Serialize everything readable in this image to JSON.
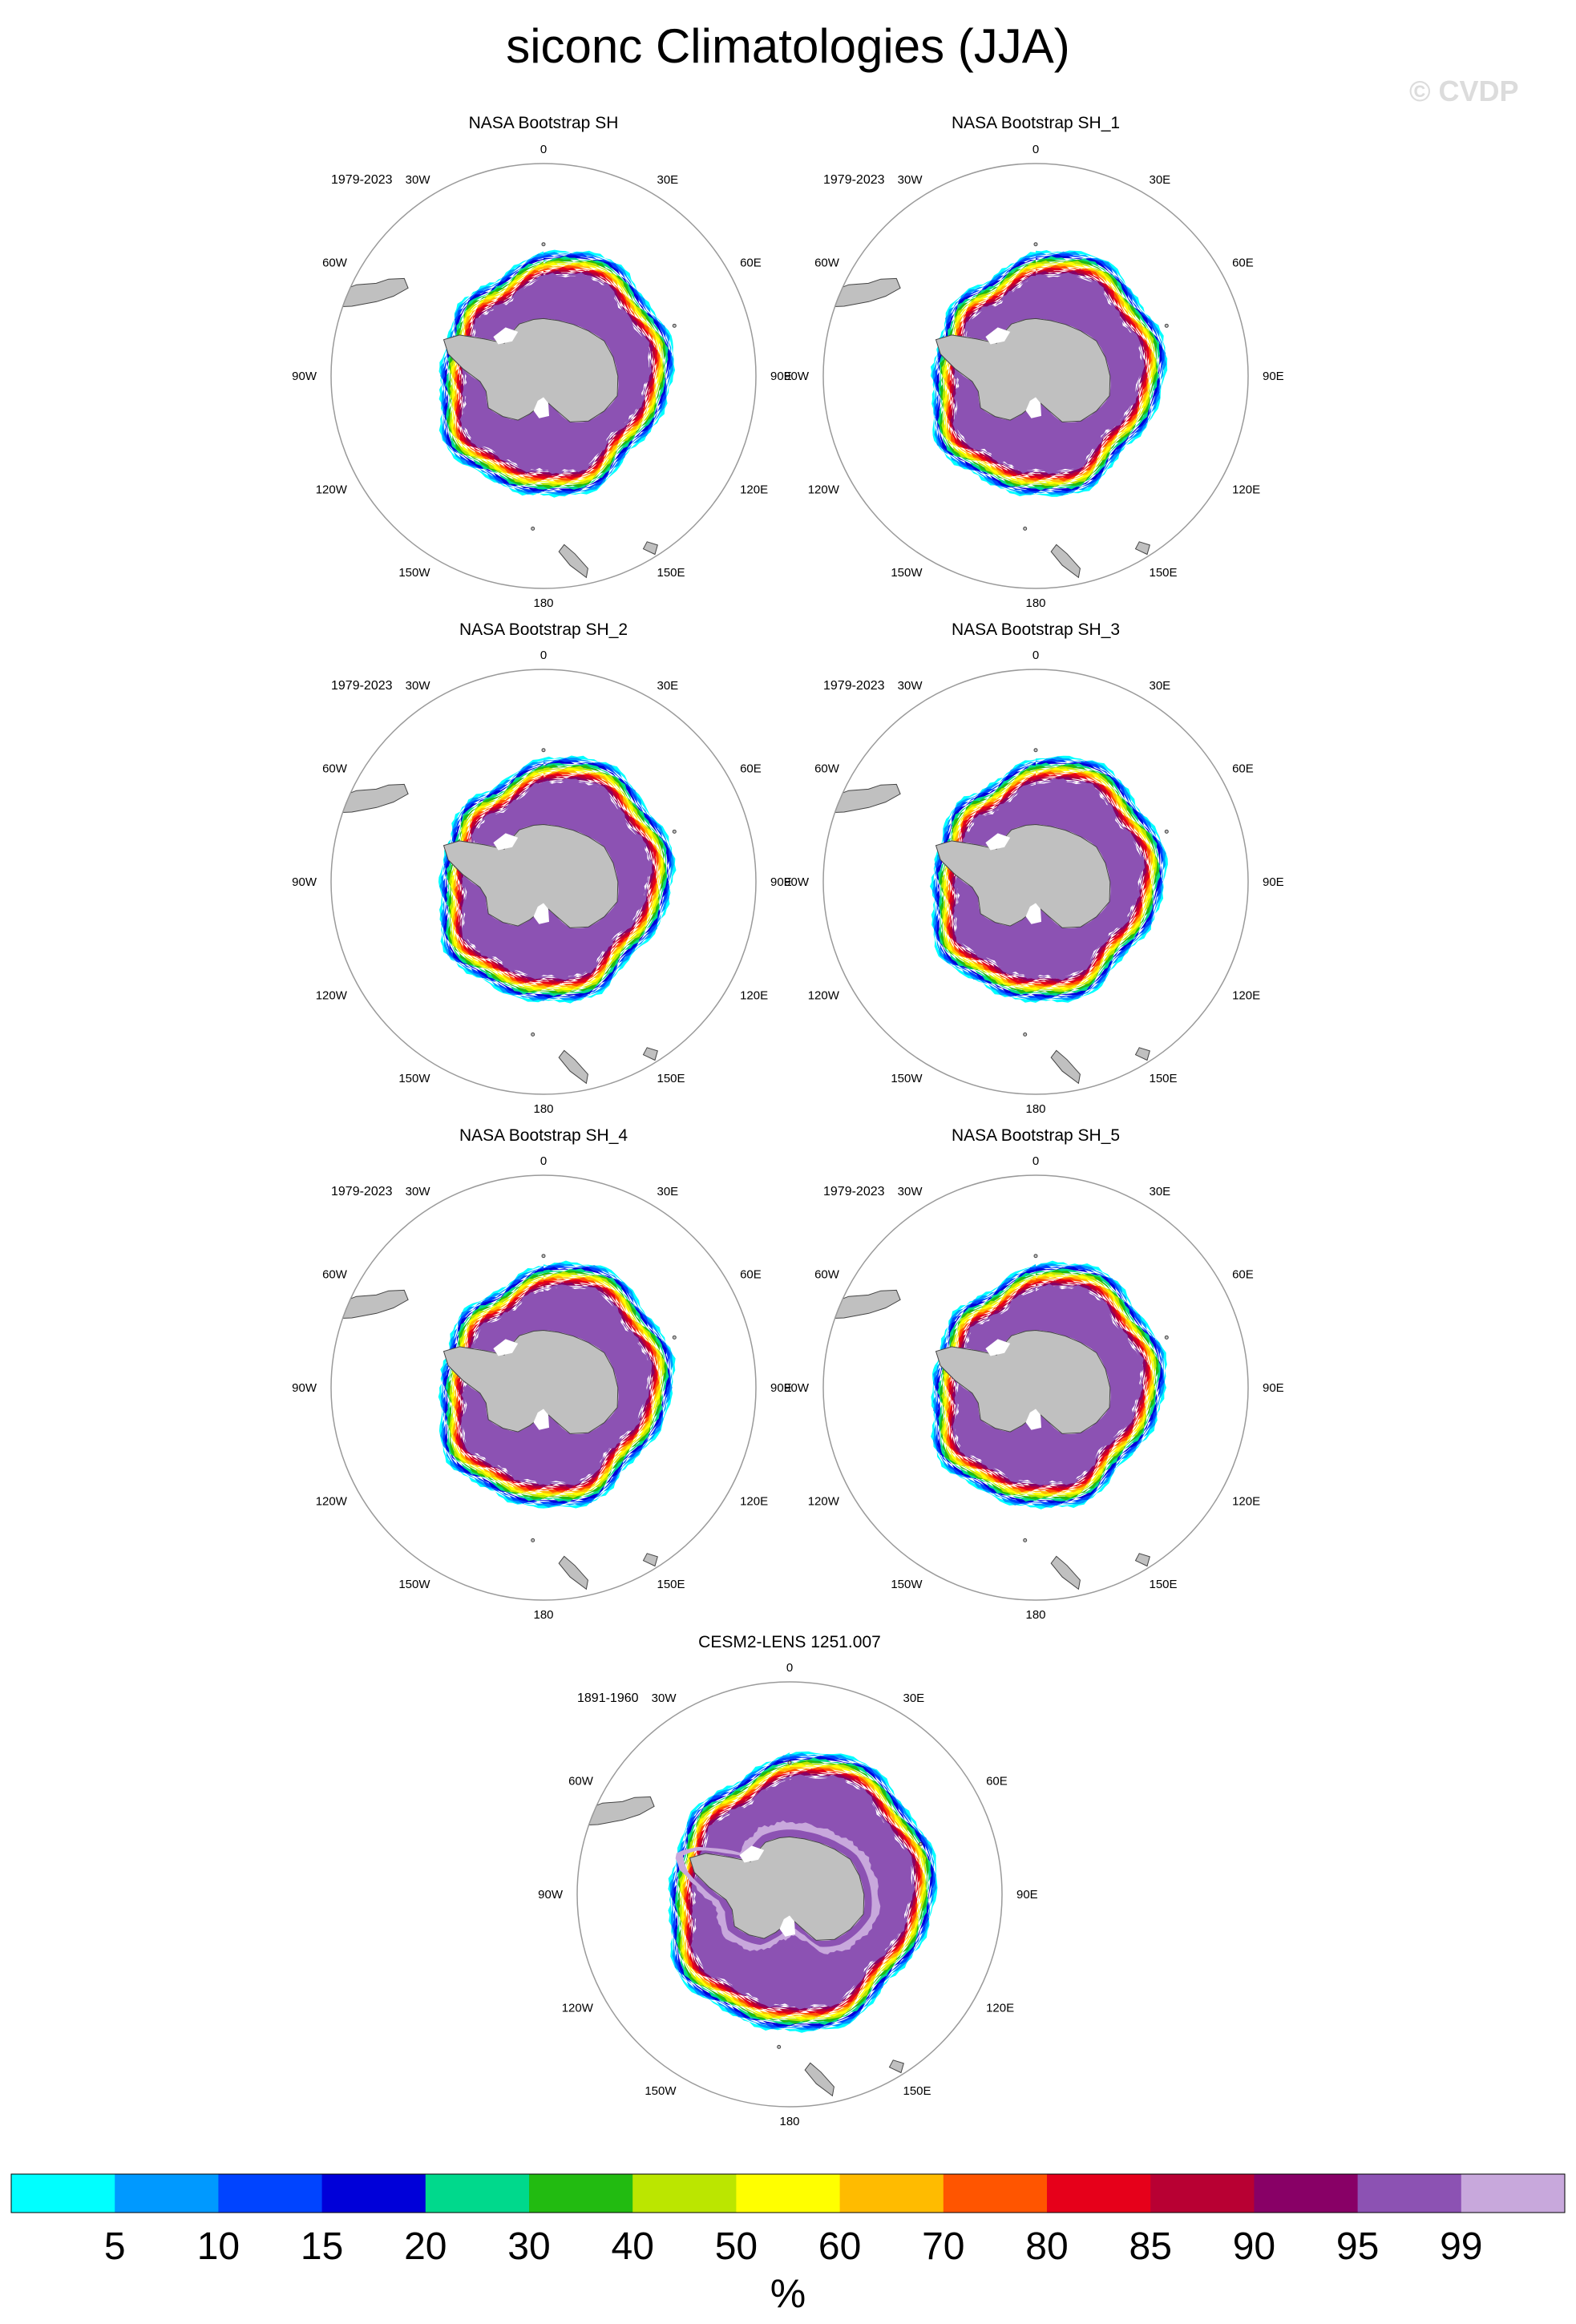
{
  "page": {
    "title": "siconc Climatologies (JJA)",
    "watermark": "© CVDP"
  },
  "chart_data": [
    {
      "type": "heatmap",
      "projection": "south-polar-stereographic",
      "variable": "siconc",
      "season": "JJA",
      "title": "NASA Bootstrap SH",
      "period": "1979-2023",
      "edge_extent": "medium"
    },
    {
      "type": "heatmap",
      "projection": "south-polar-stereographic",
      "variable": "siconc",
      "season": "JJA",
      "title": "NASA Bootstrap SH_1",
      "period": "1979-2023",
      "edge_extent": "medium"
    },
    {
      "type": "heatmap",
      "projection": "south-polar-stereographic",
      "variable": "siconc",
      "season": "JJA",
      "title": "NASA Bootstrap SH_2",
      "period": "1979-2023",
      "edge_extent": "medium"
    },
    {
      "type": "heatmap",
      "projection": "south-polar-stereographic",
      "variable": "siconc",
      "season": "JJA",
      "title": "NASA Bootstrap SH_3",
      "period": "1979-2023",
      "edge_extent": "medium"
    },
    {
      "type": "heatmap",
      "projection": "south-polar-stereographic",
      "variable": "siconc",
      "season": "JJA",
      "title": "NASA Bootstrap SH_4",
      "period": "1979-2023",
      "edge_extent": "medium"
    },
    {
      "type": "heatmap",
      "projection": "south-polar-stereographic",
      "variable": "siconc",
      "season": "JJA",
      "title": "NASA Bootstrap SH_5",
      "period": "1979-2023",
      "edge_extent": "medium"
    },
    {
      "type": "heatmap",
      "projection": "south-polar-stereographic",
      "variable": "siconc",
      "season": "JJA",
      "title": "CESM2-LENS 1251.007",
      "period": "1891-1960",
      "edge_extent": "large",
      "interior_max_class": 99
    }
  ],
  "longitude_labels": [
    "0",
    "30E",
    "60E",
    "90E",
    "120E",
    "150E",
    "180",
    "150W",
    "120W",
    "90W",
    "60W",
    "30W"
  ],
  "colorbar": {
    "unit": "%",
    "levels": [
      "5",
      "10",
      "15",
      "20",
      "30",
      "40",
      "50",
      "60",
      "70",
      "80",
      "85",
      "90",
      "95",
      "99"
    ],
    "colors": [
      "#00ffff",
      "#0099ff",
      "#0044ff",
      "#0000d9",
      "#00d98c",
      "#22bb11",
      "#bbe600",
      "#ffff00",
      "#ffbb00",
      "#ff5500",
      "#e6001a",
      "#b80033",
      "#880066",
      "#8c52b3",
      "#c8a8dc"
    ]
  },
  "map_colors": {
    "land": "#c0c0c0",
    "circle": "#9a9a9a",
    "coast": "#444444"
  }
}
